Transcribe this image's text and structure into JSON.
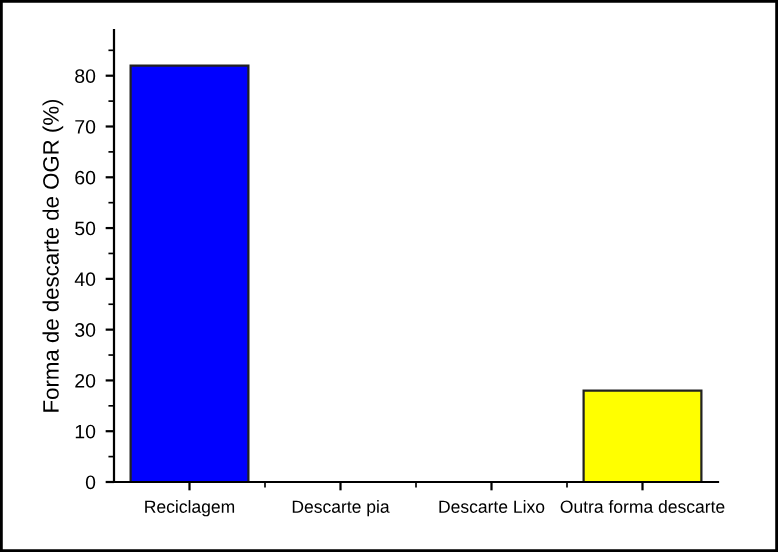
{
  "chart_data": {
    "type": "bar",
    "ylabel": "Forma de descarte de OGR (%)",
    "categories": [
      "Reciclagem",
      "Descarte pia",
      "Descarte Lixo",
      "Outra forma descarte"
    ],
    "values": [
      82,
      0,
      0,
      18
    ],
    "colors": [
      "#0000ff",
      "#222222",
      "#222222",
      "#ffff00"
    ],
    "ylim": [
      0,
      89
    ],
    "yticks": [
      0,
      10,
      20,
      30,
      40,
      50,
      60,
      70,
      80
    ],
    "grid": false,
    "legend": false
  }
}
